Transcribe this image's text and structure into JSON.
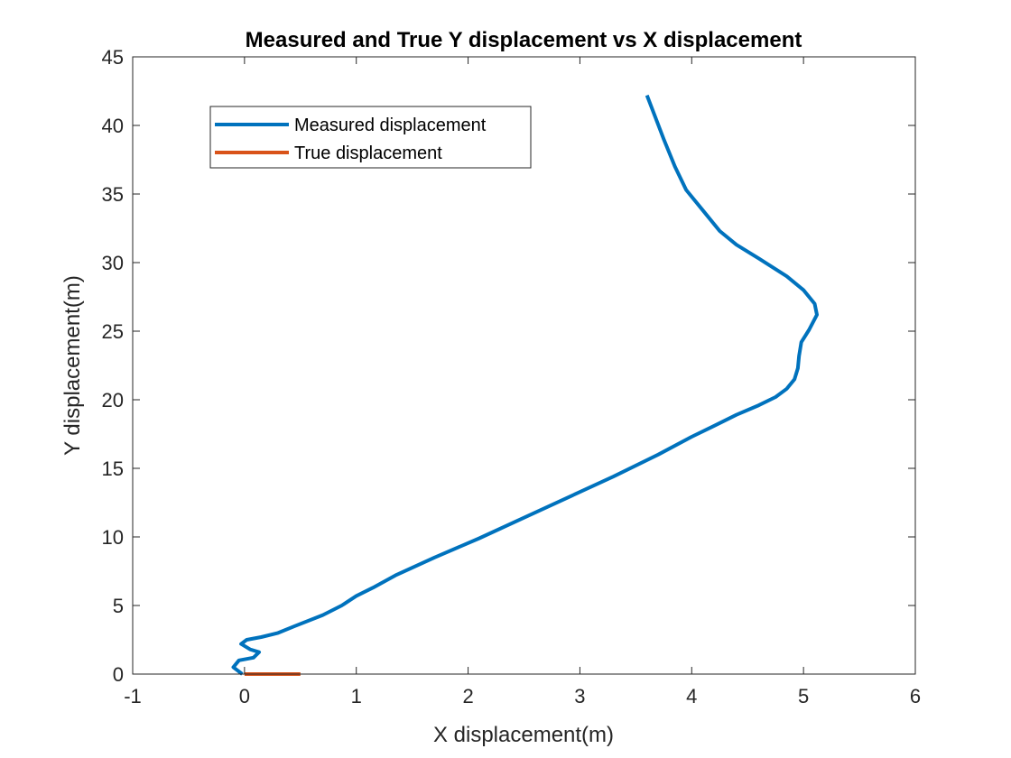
{
  "chart_data": {
    "type": "line",
    "title": "Measured and True Y displacement vs X displacement",
    "xlabel": "X displacement(m)",
    "ylabel": "Y displacement(m)",
    "xlim": [
      -1,
      6
    ],
    "ylim": [
      0,
      45
    ],
    "xticks": [
      -1,
      0,
      1,
      2,
      3,
      4,
      5,
      6
    ],
    "yticks": [
      0,
      5,
      10,
      15,
      20,
      25,
      30,
      35,
      40,
      45
    ],
    "grid": false,
    "legend_position": "top-left",
    "series": [
      {
        "name": "Measured displacement",
        "color": "#0072BD",
        "x": [
          -0.02,
          -0.1,
          -0.05,
          0.08,
          0.13,
          0.05,
          -0.03,
          0.02,
          0.15,
          0.3,
          0.45,
          0.7,
          0.87,
          1.0,
          1.15,
          1.35,
          1.7,
          2.1,
          2.5,
          2.9,
          3.3,
          3.7,
          4.0,
          4.2,
          4.4,
          4.6,
          4.75,
          4.85,
          4.92,
          4.95,
          4.96,
          4.98,
          5.05,
          5.12,
          5.1,
          5.0,
          4.85,
          4.6,
          4.4,
          4.25,
          4.1,
          3.95,
          3.85,
          3.75,
          3.6
        ],
        "y": [
          0.0,
          0.5,
          1.0,
          1.2,
          1.6,
          1.8,
          2.2,
          2.5,
          2.7,
          3.0,
          3.5,
          4.3,
          5.0,
          5.7,
          6.3,
          7.2,
          8.5,
          9.9,
          11.4,
          12.9,
          14.4,
          16.0,
          17.3,
          18.1,
          18.9,
          19.6,
          20.2,
          20.8,
          21.5,
          22.3,
          23.2,
          24.2,
          25.1,
          26.2,
          27.0,
          28.0,
          29.0,
          30.3,
          31.3,
          32.3,
          33.8,
          35.3,
          37.0,
          39.0,
          42.2
        ]
      },
      {
        "name": "True displacement",
        "color": "#D95319",
        "x": [
          0,
          0.5
        ],
        "y": [
          0,
          0
        ]
      }
    ]
  }
}
